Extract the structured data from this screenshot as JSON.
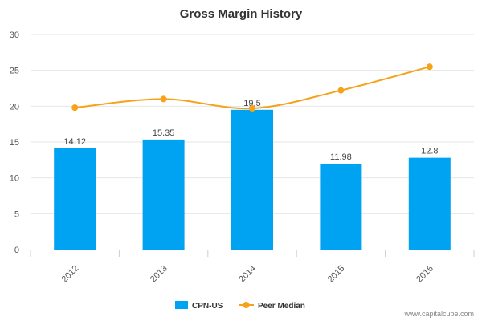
{
  "chart_data": {
    "type": "bar",
    "title": "Gross Margin History",
    "categories": [
      "2012",
      "2013",
      "2014",
      "2015",
      "2016"
    ],
    "series": [
      {
        "name": "CPN-US",
        "type": "bar",
        "color": "#00A2F2",
        "values": [
          14.12,
          15.35,
          19.5,
          11.98,
          12.8
        ],
        "labels": [
          "14.12",
          "15.35",
          "19.5",
          "11.98",
          "12.8"
        ]
      },
      {
        "name": "Peer Median",
        "type": "line",
        "color": "#F7A21B",
        "values": [
          19.8,
          21.0,
          19.7,
          22.2,
          25.5
        ]
      }
    ],
    "ylim": [
      0,
      30
    ],
    "yticks": [
      0,
      5,
      10,
      15,
      20,
      25,
      30
    ],
    "xlabel": "",
    "ylabel": "",
    "legend_position": "bottom-center"
  },
  "footer": {
    "credit": "www.capitalcube.com"
  }
}
